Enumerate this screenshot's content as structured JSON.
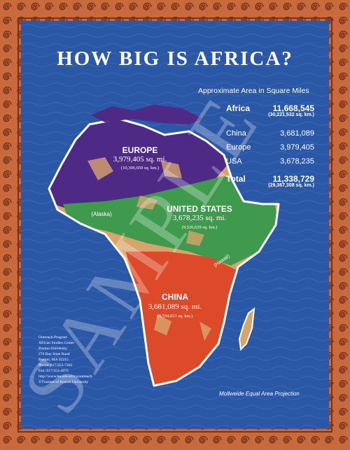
{
  "title": "HOW BIG IS AFRICA?",
  "area_heading": "Approximate Area in Square Miles",
  "stats": {
    "africa": {
      "label": "Africa",
      "value": "11,668,545",
      "km": "(30,221,532 sq. km.)"
    },
    "rows": [
      {
        "label": "China",
        "value": "3,681,089"
      },
      {
        "label": "Europe",
        "value": "3,979,405"
      },
      {
        "label": "USA",
        "value": "3,678,235"
      }
    ],
    "total": {
      "label": "Total",
      "value": "11,338,729",
      "km": "(29,367,308 sq. km.)"
    }
  },
  "overlays": {
    "europe": {
      "name": "EUROPE",
      "sq": "3,979,405 sq. mi.",
      "km": "(10,306,659 sq. km.)",
      "color": "#4e2a86"
    },
    "usa": {
      "name": "UNITED STATES",
      "sq": "3,678,235 sq. mi.",
      "km": "(9,526,629 sq. km.)",
      "color": "#3f9a4e"
    },
    "china": {
      "name": "CHINA",
      "sq": "3,681,089 sq. mi.",
      "km": "(9,534,021 sq. km.)",
      "color": "#dd4a2a"
    },
    "alaska": "(Alaska)",
    "hawaii": "(Hawaii)"
  },
  "colors": {
    "border": "#c96a3c",
    "ocean": "#2a57a6",
    "land": "#d7a56b",
    "outline": "#ffffff"
  },
  "contact": {
    "line1": "Outreach Program",
    "line2": "African Studies Center",
    "line3": "Boston University",
    "line4": "270 Bay State Road",
    "line5": "Boston, MA 02215",
    "line6": "Phone: 617/353-7303",
    "line7": "Fax: 617/353-4975",
    "line8": "http://www.bu.edu/africa/outreach",
    "line9": "©Trustees of Boston University"
  },
  "projection": "Mollweide Equal Area Projection",
  "watermark": "SAMPLE"
}
